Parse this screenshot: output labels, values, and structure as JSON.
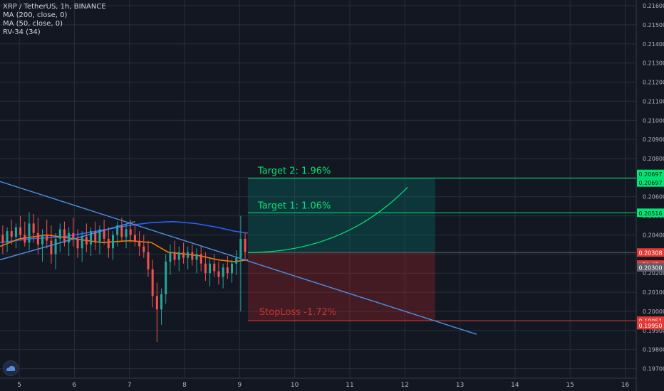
{
  "legend": {
    "symbol": "XRP / TetherUS, 1h, BINANCE",
    "ma200": "MA (200, close, 0)",
    "ma50": "MA (50, close, 0)",
    "rv": "RV-34 (34)"
  },
  "icons": {
    "logo": "tradingview-cloud-icon"
  },
  "colors": {
    "background": "#131722",
    "grid": "#2a2e39",
    "up": "#26a69a",
    "down": "#ef5350",
    "ma200": "#2962ff",
    "ma50": "#f57c00",
    "trendline": "#4a90e2",
    "target": "#00e676",
    "stop": "#e53935"
  },
  "chart_data": {
    "type": "candlestick",
    "y_ticks": [
      "0.21600",
      "0.21500",
      "0.21400",
      "0.21300",
      "0.21200",
      "0.21100",
      "0.21000",
      "0.20900",
      "0.20800",
      "0.20700",
      "0.20600",
      "0.20500",
      "0.20400",
      "0.20300",
      "0.20200",
      "0.20100",
      "0.20000",
      "0.19900",
      "0.19800",
      "0.19700"
    ],
    "x_ticks": [
      "5",
      "6",
      "7",
      "8",
      "9",
      "10",
      "11",
      "12",
      "13",
      "14",
      "15",
      "16"
    ],
    "ylim": [
      0.1965,
      0.2163
    ],
    "xlim": [
      4.65,
      16.2
    ],
    "price_tags": [
      {
        "value": 0.20697,
        "label": "0.20697",
        "style": "target"
      },
      {
        "value": 0.20697,
        "label": "0.20697",
        "style": "target"
      },
      {
        "value": 0.20516,
        "label": "0.20516",
        "style": "target"
      },
      {
        "value": 0.20308,
        "label": "0.20308",
        "style": "stop"
      },
      {
        "value": 0.20245,
        "label": "50:47",
        "style": "stop"
      },
      {
        "value": 0.2023,
        "label": "0.20300",
        "style": "gray"
      },
      {
        "value": 0.19951,
        "label": "0.19951",
        "style": "stop"
      },
      {
        "value": 0.1995,
        "label": "0.19950",
        "style": "stop"
      }
    ],
    "annotations": {
      "target2": {
        "text": "Target 2: 1.96%",
        "price": 0.20697
      },
      "target1": {
        "text": "Target 1: 1.06%",
        "price": 0.20516
      },
      "stoploss": {
        "text": "StopLoss -1.72%",
        "price": 0.19951
      },
      "entry": 0.20308,
      "box_x": [
        9.15,
        12.55
      ]
    },
    "trendline": {
      "x": [
        4.65,
        13.3
      ],
      "y": [
        0.2068,
        0.1988
      ]
    },
    "support_line": {
      "x": [
        4.65,
        7.1
      ],
      "y": [
        0.2027,
        0.2047
      ]
    },
    "projection": {
      "x": [
        9.15,
        12.05
      ],
      "y": [
        0.20308,
        0.2065
      ]
    },
    "ma200": {
      "x": [
        4.65,
        5.2,
        5.8,
        6.4,
        7.0,
        7.4,
        7.8,
        8.2,
        8.6,
        8.9,
        9.15
      ],
      "y": [
        0.2036,
        0.2038,
        0.2039,
        0.2042,
        0.2045,
        0.20465,
        0.2047,
        0.2046,
        0.2044,
        0.2042,
        0.2041
      ]
    },
    "ma50": {
      "x": [
        4.65,
        5.0,
        5.5,
        6.0,
        6.5,
        7.0,
        7.4,
        7.7,
        8.0,
        8.3,
        8.6,
        8.9,
        9.15
      ],
      "y": [
        0.2034,
        0.2038,
        0.204,
        0.2038,
        0.2036,
        0.2037,
        0.2036,
        0.2031,
        0.203,
        0.2029,
        0.2027,
        0.2026,
        0.2027
      ]
    },
    "candles": [
      {
        "x": 4.7,
        "o": 0.204,
        "h": 0.2045,
        "l": 0.203,
        "c": 0.2036
      },
      {
        "x": 4.78,
        "o": 0.2036,
        "h": 0.2044,
        "l": 0.2031,
        "c": 0.2042
      },
      {
        "x": 4.86,
        "o": 0.2042,
        "h": 0.2048,
        "l": 0.2035,
        "c": 0.2039
      },
      {
        "x": 4.94,
        "o": 0.2039,
        "h": 0.2046,
        "l": 0.2033,
        "c": 0.2044
      },
      {
        "x": 5.02,
        "o": 0.2044,
        "h": 0.205,
        "l": 0.2037,
        "c": 0.204
      },
      {
        "x": 5.1,
        "o": 0.204,
        "h": 0.2047,
        "l": 0.2034,
        "c": 0.2036
      },
      {
        "x": 5.18,
        "o": 0.2036,
        "h": 0.2052,
        "l": 0.2032,
        "c": 0.2046
      },
      {
        "x": 5.26,
        "o": 0.2046,
        "h": 0.2051,
        "l": 0.2036,
        "c": 0.2041
      },
      {
        "x": 5.34,
        "o": 0.2041,
        "h": 0.2049,
        "l": 0.203,
        "c": 0.2035
      },
      {
        "x": 5.42,
        "o": 0.2035,
        "h": 0.2043,
        "l": 0.2026,
        "c": 0.204
      },
      {
        "x": 5.5,
        "o": 0.204,
        "h": 0.2048,
        "l": 0.2033,
        "c": 0.2037
      },
      {
        "x": 5.58,
        "o": 0.2037,
        "h": 0.2045,
        "l": 0.2025,
        "c": 0.203
      },
      {
        "x": 5.66,
        "o": 0.203,
        "h": 0.2041,
        "l": 0.2022,
        "c": 0.2038
      },
      {
        "x": 5.74,
        "o": 0.2038,
        "h": 0.2046,
        "l": 0.2031,
        "c": 0.2043
      },
      {
        "x": 5.82,
        "o": 0.2043,
        "h": 0.2047,
        "l": 0.2034,
        "c": 0.2036
      },
      {
        "x": 5.9,
        "o": 0.2036,
        "h": 0.2044,
        "l": 0.2029,
        "c": 0.2041
      },
      {
        "x": 5.98,
        "o": 0.2041,
        "h": 0.2049,
        "l": 0.2034,
        "c": 0.2038
      },
      {
        "x": 6.06,
        "o": 0.2038,
        "h": 0.2043,
        "l": 0.2028,
        "c": 0.2033
      },
      {
        "x": 6.14,
        "o": 0.2033,
        "h": 0.2042,
        "l": 0.2026,
        "c": 0.2039
      },
      {
        "x": 6.22,
        "o": 0.2039,
        "h": 0.2046,
        "l": 0.2031,
        "c": 0.2035
      },
      {
        "x": 6.3,
        "o": 0.2035,
        "h": 0.2044,
        "l": 0.2029,
        "c": 0.2042
      },
      {
        "x": 6.38,
        "o": 0.2042,
        "h": 0.2047,
        "l": 0.2032,
        "c": 0.2036
      },
      {
        "x": 6.46,
        "o": 0.2036,
        "h": 0.2045,
        "l": 0.203,
        "c": 0.2043
      },
      {
        "x": 6.54,
        "o": 0.2043,
        "h": 0.2048,
        "l": 0.2035,
        "c": 0.2038
      },
      {
        "x": 6.62,
        "o": 0.2038,
        "h": 0.2044,
        "l": 0.2028,
        "c": 0.2033
      },
      {
        "x": 6.7,
        "o": 0.2033,
        "h": 0.2042,
        "l": 0.2027,
        "c": 0.204
      },
      {
        "x": 6.78,
        "o": 0.204,
        "h": 0.2047,
        "l": 0.2034,
        "c": 0.2045
      },
      {
        "x": 6.86,
        "o": 0.2045,
        "h": 0.2049,
        "l": 0.2037,
        "c": 0.2039
      },
      {
        "x": 6.94,
        "o": 0.2039,
        "h": 0.2046,
        "l": 0.2033,
        "c": 0.2043
      },
      {
        "x": 7.02,
        "o": 0.2043,
        "h": 0.2048,
        "l": 0.2036,
        "c": 0.204
      },
      {
        "x": 7.1,
        "o": 0.204,
        "h": 0.2046,
        "l": 0.2034,
        "c": 0.2037
      },
      {
        "x": 7.18,
        "o": 0.2037,
        "h": 0.2042,
        "l": 0.2029,
        "c": 0.2034
      },
      {
        "x": 7.26,
        "o": 0.2034,
        "h": 0.204,
        "l": 0.2028,
        "c": 0.2031
      },
      {
        "x": 7.34,
        "o": 0.2031,
        "h": 0.2037,
        "l": 0.2018,
        "c": 0.2022
      },
      {
        "x": 7.42,
        "o": 0.2022,
        "h": 0.2027,
        "l": 0.2002,
        "c": 0.2008
      },
      {
        "x": 7.5,
        "o": 0.2008,
        "h": 0.2015,
        "l": 0.1984,
        "c": 0.2001
      },
      {
        "x": 7.58,
        "o": 0.2001,
        "h": 0.2012,
        "l": 0.1993,
        "c": 0.2009
      },
      {
        "x": 7.66,
        "o": 0.2009,
        "h": 0.203,
        "l": 0.2004,
        "c": 0.2026
      },
      {
        "x": 7.74,
        "o": 0.2026,
        "h": 0.2035,
        "l": 0.2019,
        "c": 0.2031
      },
      {
        "x": 7.82,
        "o": 0.2031,
        "h": 0.2037,
        "l": 0.2024,
        "c": 0.2027
      },
      {
        "x": 7.9,
        "o": 0.2027,
        "h": 0.2034,
        "l": 0.2021,
        "c": 0.2031
      },
      {
        "x": 7.98,
        "o": 0.2031,
        "h": 0.2036,
        "l": 0.2025,
        "c": 0.2028
      },
      {
        "x": 8.06,
        "o": 0.2028,
        "h": 0.2034,
        "l": 0.2022,
        "c": 0.2031
      },
      {
        "x": 8.14,
        "o": 0.2031,
        "h": 0.2035,
        "l": 0.2024,
        "c": 0.2027
      },
      {
        "x": 8.22,
        "o": 0.2027,
        "h": 0.2033,
        "l": 0.202,
        "c": 0.203
      },
      {
        "x": 8.3,
        "o": 0.203,
        "h": 0.2034,
        "l": 0.2021,
        "c": 0.2025
      },
      {
        "x": 8.38,
        "o": 0.2025,
        "h": 0.2031,
        "l": 0.2016,
        "c": 0.202
      },
      {
        "x": 8.46,
        "o": 0.202,
        "h": 0.2028,
        "l": 0.2013,
        "c": 0.2025
      },
      {
        "x": 8.54,
        "o": 0.2025,
        "h": 0.203,
        "l": 0.2018,
        "c": 0.2021
      },
      {
        "x": 8.62,
        "o": 0.2021,
        "h": 0.2026,
        "l": 0.2014,
        "c": 0.2018
      },
      {
        "x": 8.7,
        "o": 0.2018,
        "h": 0.2025,
        "l": 0.2012,
        "c": 0.2023
      },
      {
        "x": 8.78,
        "o": 0.2023,
        "h": 0.2029,
        "l": 0.2017,
        "c": 0.202
      },
      {
        "x": 8.86,
        "o": 0.202,
        "h": 0.2027,
        "l": 0.2015,
        "c": 0.2025
      },
      {
        "x": 8.94,
        "o": 0.2025,
        "h": 0.2032,
        "l": 0.2019,
        "c": 0.2028
      },
      {
        "x": 9.02,
        "o": 0.2028,
        "h": 0.205,
        "l": 0.2,
        "c": 0.2038
      },
      {
        "x": 9.1,
        "o": 0.2038,
        "h": 0.2041,
        "l": 0.2027,
        "c": 0.2031
      }
    ]
  }
}
